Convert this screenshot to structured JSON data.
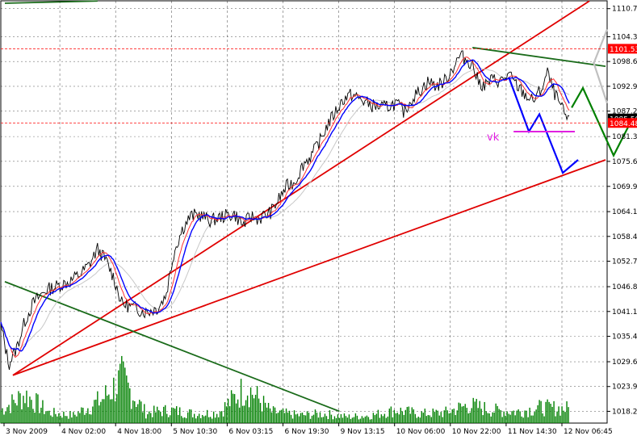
{
  "chart_data": {
    "type": "line",
    "title": "",
    "xlabel": "",
    "ylabel": "",
    "ylim": [
      1015.5,
      1112.55
    ],
    "grid": true,
    "x_ticks": [
      "3 Nov 2009",
      "4 Nov 02:00",
      "4 Nov 18:00",
      "5 Nov 10:30",
      "6 Nov 03:15",
      "6 Nov 19:30",
      "9 Nov 13:15",
      "10 Nov 06:00",
      "10 Nov 22:00",
      "11 Nov 14:30",
      "12 Nov 06:45"
    ],
    "y_ticks": [
      1110.75,
      1104.3,
      1098.6,
      1092.9,
      1087.2,
      1081.35,
      1075.65,
      1069.9,
      1064.1,
      1058.4,
      1052.7,
      1046.85,
      1041.15,
      1035.45,
      1029.6,
      1023.9,
      1018.2
    ],
    "price_labels": [
      {
        "text": "1101.53",
        "value": 1101.53,
        "color": "#ff0000"
      },
      {
        "text": "1085.50",
        "value": 1085.5,
        "color": "#000000"
      },
      {
        "text": "1084.48",
        "value": 1084.48,
        "color": "#ff0000"
      }
    ],
    "annotation": {
      "text": "vk",
      "color": "#e020e0"
    },
    "price_series": [
      {
        "bar": 0,
        "value": 1038.0
      },
      {
        "bar": 10,
        "value": 1029.0
      },
      {
        "bar": 20,
        "value": 1033.0
      },
      {
        "bar": 30,
        "value": 1039.0
      },
      {
        "bar": 40,
        "value": 1043.0
      },
      {
        "bar": 55,
        "value": 1046.0
      },
      {
        "bar": 70,
        "value": 1047.0
      },
      {
        "bar": 85,
        "value": 1048.0
      },
      {
        "bar": 100,
        "value": 1050.0
      },
      {
        "bar": 110,
        "value": 1052.0
      },
      {
        "bar": 120,
        "value": 1055.5
      },
      {
        "bar": 130,
        "value": 1053.0
      },
      {
        "bar": 140,
        "value": 1049.0
      },
      {
        "bar": 150,
        "value": 1043.0
      },
      {
        "bar": 165,
        "value": 1042.0
      },
      {
        "bar": 180,
        "value": 1041.0
      },
      {
        "bar": 195,
        "value": 1042.0
      },
      {
        "bar": 205,
        "value": 1045.0
      },
      {
        "bar": 215,
        "value": 1055.0
      },
      {
        "bar": 225,
        "value": 1060.0
      },
      {
        "bar": 235,
        "value": 1063.0
      },
      {
        "bar": 245,
        "value": 1063.5
      },
      {
        "bar": 260,
        "value": 1062.0
      },
      {
        "bar": 275,
        "value": 1063.0
      },
      {
        "bar": 290,
        "value": 1063.5
      },
      {
        "bar": 300,
        "value": 1061.0
      },
      {
        "bar": 310,
        "value": 1063.0
      },
      {
        "bar": 320,
        "value": 1062.5
      },
      {
        "bar": 335,
        "value": 1064.0
      },
      {
        "bar": 345,
        "value": 1067.0
      },
      {
        "bar": 355,
        "value": 1070.0
      },
      {
        "bar": 365,
        "value": 1071.0
      },
      {
        "bar": 375,
        "value": 1075.0
      },
      {
        "bar": 385,
        "value": 1077.0
      },
      {
        "bar": 395,
        "value": 1080.0
      },
      {
        "bar": 405,
        "value": 1084.0
      },
      {
        "bar": 415,
        "value": 1087.0
      },
      {
        "bar": 425,
        "value": 1090.0
      },
      {
        "bar": 435,
        "value": 1091.0
      },
      {
        "bar": 445,
        "value": 1090.0
      },
      {
        "bar": 460,
        "value": 1088.5
      },
      {
        "bar": 475,
        "value": 1088.0
      },
      {
        "bar": 490,
        "value": 1089.0
      },
      {
        "bar": 500,
        "value": 1087.0
      },
      {
        "bar": 510,
        "value": 1090.0
      },
      {
        "bar": 520,
        "value": 1092.0
      },
      {
        "bar": 530,
        "value": 1094.0
      },
      {
        "bar": 540,
        "value": 1093.0
      },
      {
        "bar": 550,
        "value": 1094.0
      },
      {
        "bar": 560,
        "value": 1097.0
      },
      {
        "bar": 570,
        "value": 1100.0
      },
      {
        "bar": 578,
        "value": 1099.0
      },
      {
        "bar": 585,
        "value": 1098.0
      },
      {
        "bar": 592,
        "value": 1094.0
      },
      {
        "bar": 600,
        "value": 1093.0
      },
      {
        "bar": 610,
        "value": 1094.5
      },
      {
        "bar": 620,
        "value": 1094.0
      },
      {
        "bar": 630,
        "value": 1095.5
      },
      {
        "bar": 640,
        "value": 1093.0
      },
      {
        "bar": 650,
        "value": 1091.0
      },
      {
        "bar": 660,
        "value": 1089.5
      },
      {
        "bar": 670,
        "value": 1092.0
      },
      {
        "bar": 678,
        "value": 1096.0
      },
      {
        "bar": 685,
        "value": 1092.0
      },
      {
        "bar": 695,
        "value": 1088.0
      },
      {
        "bar": 705,
        "value": 1084.5
      }
    ],
    "volume_series": [
      {
        "bar": 0,
        "value": 0.25
      },
      {
        "bar": 30,
        "value": 0.55
      },
      {
        "bar": 60,
        "value": 0.2
      },
      {
        "bar": 90,
        "value": 0.15
      },
      {
        "bar": 125,
        "value": 0.45
      },
      {
        "bar": 150,
        "value": 0.85
      },
      {
        "bar": 180,
        "value": 0.2
      },
      {
        "bar": 210,
        "value": 0.25
      },
      {
        "bar": 240,
        "value": 0.18
      },
      {
        "bar": 270,
        "value": 0.2
      },
      {
        "bar": 305,
        "value": 0.7
      },
      {
        "bar": 335,
        "value": 0.22
      },
      {
        "bar": 370,
        "value": 0.15
      },
      {
        "bar": 400,
        "value": 0.18
      },
      {
        "bar": 430,
        "value": 0.12
      },
      {
        "bar": 460,
        "value": 0.15
      },
      {
        "bar": 490,
        "value": 0.25
      },
      {
        "bar": 520,
        "value": 0.18
      },
      {
        "bar": 550,
        "value": 0.2
      },
      {
        "bar": 580,
        "value": 0.35
      },
      {
        "bar": 610,
        "value": 0.25
      },
      {
        "bar": 640,
        "value": 0.22
      },
      {
        "bar": 670,
        "value": 0.3
      },
      {
        "bar": 700,
        "value": 0.28
      }
    ],
    "trend_lines": [
      {
        "color": "#e00000",
        "from": {
          "bar": 15,
          "value": 1026.5
        },
        "to": {
          "bar": 730,
          "value": 1112.5
        }
      },
      {
        "color": "#e00000",
        "from": {
          "bar": 15,
          "value": 1026.5
        },
        "to": {
          "bar": 750,
          "value": 1076.0
        }
      },
      {
        "color": "#1a6b1a",
        "from": {
          "bar": 5,
          "value": 1048.0
        },
        "to": {
          "bar": 420,
          "value": 1018.2
        }
      },
      {
        "color": "#1a6b1a",
        "from": {
          "bar": 5,
          "value": 1112.0
        },
        "to": {
          "bar": 120,
          "value": 1112.5
        }
      },
      {
        "color": "#1a6b1a",
        "from": {
          "bar": 585,
          "value": 1101.8
        },
        "to": {
          "bar": 750,
          "value": 1097.5
        }
      }
    ],
    "projections": [
      {
        "color": "#0000ff",
        "points": [
          {
            "bar": 630,
            "value": 1095.0
          },
          {
            "bar": 655,
            "value": 1082.5
          },
          {
            "bar": 668,
            "value": 1086.5
          },
          {
            "bar": 697,
            "value": 1073.0
          },
          {
            "bar": 716,
            "value": 1076.0
          }
        ]
      },
      {
        "color": "#008000",
        "points": [
          {
            "bar": 708,
            "value": 1088.0
          },
          {
            "bar": 722,
            "value": 1092.5
          },
          {
            "bar": 760,
            "value": 1077.0
          },
          {
            "bar": 782,
            "value": 1085.0
          }
        ]
      },
      {
        "color": "#c0c0c0",
        "points": [
          {
            "bar": 735,
            "value": 1098.0
          },
          {
            "bar": 752,
            "value": 1106.0
          }
        ]
      },
      {
        "color": "#c0c0c0",
        "points": [
          {
            "bar": 735,
            "value": 1098.5
          },
          {
            "bar": 752,
            "value": 1089.0
          }
        ]
      }
    ],
    "support_level": {
      "color": "#e020e0",
      "from_bar": 636,
      "to_bar": 712,
      "value": 1082.5
    }
  }
}
